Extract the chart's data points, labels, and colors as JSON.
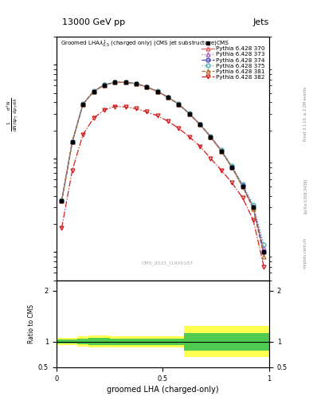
{
  "title": "13000 GeV pp",
  "title_right": "Jets",
  "xlabel": "groomed LHA (charged-only)",
  "ylabel_ratio": "Ratio to CMS",
  "watermark": "CMS_2021_I1920187",
  "rivet_label": "Rivet 3.1.10, ≥ 2.2M events",
  "arxiv_label": "[arXiv:1306.3436]",
  "mcplots_label": "mcplots.cern.ch",
  "cms_x": [
    0.025,
    0.075,
    0.125,
    0.175,
    0.225,
    0.275,
    0.325,
    0.375,
    0.425,
    0.475,
    0.525,
    0.575,
    0.625,
    0.675,
    0.725,
    0.775,
    0.825,
    0.875,
    0.925,
    0.975
  ],
  "cms_y": [
    0.35,
    1.5,
    3.8,
    5.2,
    6.1,
    6.5,
    6.5,
    6.3,
    5.8,
    5.2,
    4.5,
    3.8,
    3.0,
    2.3,
    1.7,
    1.2,
    0.8,
    0.5,
    0.3,
    0.1
  ],
  "py370_y": [
    0.35,
    1.5,
    3.8,
    5.2,
    6.1,
    6.5,
    6.5,
    6.3,
    5.8,
    5.2,
    4.5,
    3.8,
    3.0,
    2.3,
    1.7,
    1.2,
    0.8,
    0.5,
    0.3,
    0.1
  ],
  "py373_y": [
    0.36,
    1.52,
    3.82,
    5.22,
    6.12,
    6.52,
    6.52,
    6.32,
    5.82,
    5.22,
    4.52,
    3.82,
    3.02,
    2.32,
    1.72,
    1.22,
    0.82,
    0.52,
    0.31,
    0.11
  ],
  "py374_y": [
    0.35,
    1.51,
    3.81,
    5.21,
    6.11,
    6.51,
    6.51,
    6.31,
    5.81,
    5.21,
    4.51,
    3.81,
    3.01,
    2.31,
    1.71,
    1.21,
    0.81,
    0.51,
    0.3,
    0.1
  ],
  "py375_y": [
    0.36,
    1.52,
    3.83,
    5.23,
    6.13,
    6.53,
    6.53,
    6.33,
    5.83,
    5.23,
    4.53,
    3.83,
    3.03,
    2.33,
    1.73,
    1.23,
    0.83,
    0.53,
    0.32,
    0.12
  ],
  "py381_y": [
    0.35,
    1.5,
    3.8,
    5.2,
    6.1,
    6.5,
    6.5,
    6.3,
    5.8,
    5.2,
    4.5,
    3.8,
    3.0,
    2.3,
    1.7,
    1.2,
    0.8,
    0.5,
    0.29,
    0.09
  ],
  "py382_y": [
    0.18,
    0.75,
    1.8,
    2.7,
    3.3,
    3.6,
    3.55,
    3.4,
    3.15,
    2.85,
    2.5,
    2.1,
    1.7,
    1.35,
    1.0,
    0.75,
    0.55,
    0.38,
    0.22,
    0.07
  ],
  "ylim_main_log": [
    0.05,
    20
  ],
  "ylim_ratio": [
    0.5,
    2.2
  ],
  "color_370": "#e06060",
  "color_373": "#b060c0",
  "color_374": "#4040c0",
  "color_375": "#40b0b0",
  "color_381": "#b07030",
  "color_382": "#d02020",
  "yellow_band_x": [
    0.0,
    0.05,
    0.1,
    0.15,
    0.2,
    0.25,
    0.3,
    0.35,
    0.4,
    0.45,
    0.5,
    0.55,
    0.6,
    0.65,
    0.7,
    0.75,
    0.8,
    0.85,
    0.9,
    0.95,
    1.0
  ],
  "yellow_lo_step": [
    0.93,
    0.93,
    0.9,
    0.88,
    0.88,
    0.89,
    0.89,
    0.89,
    0.89,
    0.89,
    0.89,
    0.89,
    0.7,
    0.7,
    0.7,
    0.7,
    0.7,
    0.7,
    0.7,
    0.7,
    0.7
  ],
  "yellow_hi_step": [
    1.07,
    1.07,
    1.1,
    1.12,
    1.12,
    1.11,
    1.11,
    1.11,
    1.11,
    1.11,
    1.11,
    1.11,
    1.3,
    1.3,
    1.3,
    1.3,
    1.3,
    1.3,
    1.3,
    1.3,
    1.3
  ],
  "green_lo_step": [
    0.96,
    0.96,
    0.95,
    0.93,
    0.93,
    0.94,
    0.94,
    0.94,
    0.94,
    0.94,
    0.94,
    0.94,
    0.83,
    0.83,
    0.83,
    0.83,
    0.83,
    0.83,
    0.83,
    0.83,
    0.83
  ],
  "green_hi_step": [
    1.04,
    1.04,
    1.05,
    1.07,
    1.07,
    1.06,
    1.06,
    1.06,
    1.06,
    1.06,
    1.06,
    1.06,
    1.17,
    1.17,
    1.17,
    1.17,
    1.17,
    1.17,
    1.17,
    1.17,
    1.17
  ]
}
